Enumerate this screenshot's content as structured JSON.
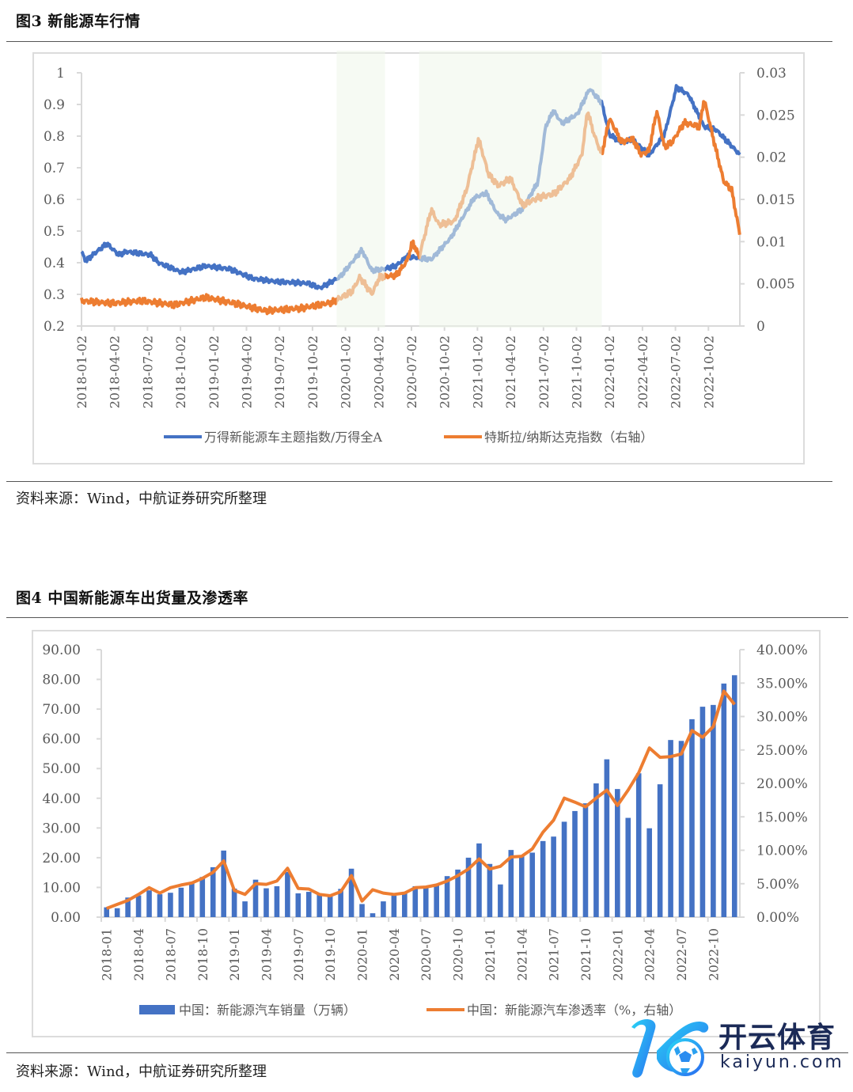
{
  "figure3": {
    "title": "图3   新能源车行情",
    "source": "资料来源：Wind，中航证券研究所整理"
  },
  "figure4": {
    "title": "图4   中国新能源车出货量及渗透率",
    "source": "资料来源：Wind，中航证券研究所整理"
  },
  "watermark": {
    "name_cn": "开云体育",
    "domain": "kaiyun.com"
  },
  "colors": {
    "blue": "#4472C4",
    "orange": "#ED7D31",
    "shade": "#EEF6EA",
    "grid": "#D9D9D9"
  },
  "chart_data": [
    {
      "type": "line",
      "title": "新能源车行情",
      "x_unit": "months since 2018-01-02",
      "x_tick_labels": [
        "2018-01-02",
        "2018-04-02",
        "2018-07-02",
        "2018-10-02",
        "2019-01-02",
        "2019-04-02",
        "2019-07-02",
        "2019-10-02",
        "2020-01-02",
        "2020-04-02",
        "2020-07-02",
        "2020-10-02",
        "2021-01-02",
        "2021-04-02",
        "2021-07-02",
        "2021-10-02",
        "2022-01-02",
        "2022-04-02",
        "2022-07-02",
        "2022-10-02"
      ],
      "y_left": {
        "ticks": [
          "0.2",
          "0.3",
          "0.4",
          "0.5",
          "0.6",
          "0.7",
          "0.8",
          "0.9",
          "1"
        ],
        "ylim": [
          0.2,
          1.0
        ]
      },
      "y_right": {
        "ticks": [
          "0",
          "0.005",
          "0.01",
          "0.015",
          "0.02",
          "0.025",
          "0.03"
        ],
        "ylim": [
          0,
          0.03
        ]
      },
      "shaded_periods": [
        [
          23.2,
          27.6
        ],
        [
          30.7,
          47.3
        ]
      ],
      "legend_position": "bottom",
      "series": [
        {
          "name": "万得新能源车主题指数/万得全A",
          "axis": "left",
          "color": "#4472C4",
          "points": [
            [
              0,
              0.435
            ],
            [
              0.4,
              0.405
            ],
            [
              1.2,
              0.43
            ],
            [
              2.3,
              0.46
            ],
            [
              3.4,
              0.425
            ],
            [
              4.1,
              0.435
            ],
            [
              6.3,
              0.425
            ],
            [
              7.0,
              0.4
            ],
            [
              9.1,
              0.37
            ],
            [
              11.3,
              0.39
            ],
            [
              13.5,
              0.38
            ],
            [
              15.6,
              0.35
            ],
            [
              17.8,
              0.34
            ],
            [
              20.6,
              0.335
            ],
            [
              21.7,
              0.32
            ],
            [
              23.5,
              0.355
            ],
            [
              25.5,
              0.44
            ],
            [
              26.4,
              0.375
            ],
            [
              27.5,
              0.38
            ],
            [
              28.6,
              0.39
            ],
            [
              29.6,
              0.42
            ],
            [
              31.8,
              0.41
            ],
            [
              33.6,
              0.48
            ],
            [
              35.7,
              0.605
            ],
            [
              36.8,
              0.62
            ],
            [
              37.8,
              0.555
            ],
            [
              38.6,
              0.535
            ],
            [
              40.1,
              0.57
            ],
            [
              41.5,
              0.655
            ],
            [
              42.2,
              0.83
            ],
            [
              42.9,
              0.88
            ],
            [
              43.7,
              0.84
            ],
            [
              45.1,
              0.87
            ],
            [
              46.2,
              0.95
            ],
            [
              47.3,
              0.905
            ],
            [
              48.0,
              0.805
            ],
            [
              49.1,
              0.78
            ],
            [
              50.1,
              0.79
            ],
            [
              51.6,
              0.74
            ],
            [
              53.0,
              0.805
            ],
            [
              54.1,
              0.955
            ],
            [
              55.2,
              0.93
            ],
            [
              55.9,
              0.88
            ],
            [
              56.6,
              0.83
            ],
            [
              57.7,
              0.82
            ],
            [
              58.8,
              0.78
            ],
            [
              59.9,
              0.74
            ]
          ]
        },
        {
          "name": "特斯拉/纳斯达克指数（右轴）",
          "axis": "right",
          "color": "#ED7D31",
          "points": [
            [
              0,
              0.003
            ],
            [
              2.7,
              0.0027
            ],
            [
              5.5,
              0.003
            ],
            [
              8.4,
              0.0025
            ],
            [
              11.3,
              0.0034
            ],
            [
              14.2,
              0.0026
            ],
            [
              16.7,
              0.0018
            ],
            [
              20.0,
              0.0021
            ],
            [
              22.8,
              0.0028
            ],
            [
              24.6,
              0.0041
            ],
            [
              25.3,
              0.0058
            ],
            [
              26.4,
              0.0038
            ],
            [
              27.1,
              0.0058
            ],
            [
              28.6,
              0.006
            ],
            [
              29.6,
              0.0077
            ],
            [
              30.1,
              0.01
            ],
            [
              30.7,
              0.0082
            ],
            [
              31.8,
              0.0138
            ],
            [
              32.5,
              0.012
            ],
            [
              33.9,
              0.0124
            ],
            [
              35.0,
              0.0161
            ],
            [
              36.1,
              0.0222
            ],
            [
              37.0,
              0.018
            ],
            [
              37.9,
              0.0166
            ],
            [
              39.0,
              0.0175
            ],
            [
              40.1,
              0.0143
            ],
            [
              41.5,
              0.0152
            ],
            [
              43.0,
              0.0157
            ],
            [
              44.4,
              0.0175
            ],
            [
              45.5,
              0.0203
            ],
            [
              46.0,
              0.0255
            ],
            [
              46.6,
              0.0227
            ],
            [
              47.3,
              0.0203
            ],
            [
              48.0,
              0.0246
            ],
            [
              49.1,
              0.0218
            ],
            [
              50.1,
              0.0222
            ],
            [
              50.9,
              0.0203
            ],
            [
              51.6,
              0.0208
            ],
            [
              52.3,
              0.0255
            ],
            [
              53.0,
              0.0212
            ],
            [
              53.7,
              0.0218
            ],
            [
              54.8,
              0.0241
            ],
            [
              56.2,
              0.0236
            ],
            [
              56.6,
              0.0269
            ],
            [
              57.7,
              0.0208
            ],
            [
              58.4,
              0.0171
            ],
            [
              59.1,
              0.0162
            ],
            [
              59.9,
              0.0105
            ]
          ]
        }
      ]
    },
    {
      "type": "bar",
      "title": "中国新能源车出货量及渗透率",
      "categories_start": "2018-01",
      "x_tick_labels": [
        "2018-01",
        "2018-04",
        "2018-07",
        "2018-10",
        "2019-01",
        "2019-04",
        "2019-07",
        "2019-10",
        "2020-01",
        "2020-04",
        "2020-07",
        "2020-10",
        "2021-01",
        "2021-04",
        "2021-07",
        "2021-10",
        "2022-01",
        "2022-04",
        "2022-07",
        "2022-10"
      ],
      "y_left": {
        "ticks": [
          "0.00",
          "10.00",
          "20.00",
          "30.00",
          "40.00",
          "50.00",
          "60.00",
          "70.00",
          "80.00",
          "90.00"
        ],
        "ylim": [
          0,
          90
        ]
      },
      "y_right": {
        "ticks": [
          "0.00%",
          "5.00%",
          "10.00%",
          "15.00%",
          "20.00%",
          "25.00%",
          "30.00%",
          "35.00%",
          "40.00%"
        ],
        "ylim": [
          0,
          40
        ]
      },
      "legend_position": "bottom",
      "series": [
        {
          "name": "中国：新能源汽车销量（万辆）",
          "type": "bar",
          "axis": "left",
          "color": "#4472C4",
          "values": [
            3.3,
            3.0,
            6.6,
            7.3,
            9.0,
            7.7,
            8.2,
            9.9,
            11.7,
            13.5,
            16.8,
            22.4,
            9.6,
            5.3,
            12.6,
            9.7,
            10.4,
            15.2,
            8.0,
            8.5,
            8.0,
            7.5,
            9.5,
            16.3,
            4.4,
            1.3,
            5.3,
            7.2,
            8.2,
            10.4,
            9.8,
            10.9,
            13.8,
            16.0,
            20.0,
            24.8,
            17.9,
            11.0,
            22.6,
            20.6,
            21.7,
            25.6,
            27.1,
            32.1,
            35.7,
            38.3,
            45.0,
            53.1,
            43.1,
            33.4,
            48.4,
            29.9,
            44.7,
            59.6,
            59.3,
            66.6,
            70.8,
            71.4,
            78.6,
            81.4
          ]
        },
        {
          "name": "中国：新能源汽车渗透率（%，右轴）",
          "type": "line",
          "axis": "right",
          "color": "#ED7D31",
          "values": [
            1.3,
            1.9,
            2.5,
            3.4,
            4.4,
            3.6,
            4.4,
            4.8,
            5.1,
            5.8,
            6.7,
            8.4,
            4.0,
            3.4,
            5.0,
            4.9,
            5.4,
            7.3,
            4.3,
            4.2,
            3.4,
            3.2,
            3.8,
            6.2,
            2.4,
            4.1,
            3.6,
            3.4,
            3.6,
            4.4,
            4.5,
            4.8,
            5.4,
            6.2,
            7.2,
            8.7,
            7.2,
            7.6,
            9.0,
            9.1,
            10.2,
            12.7,
            14.5,
            17.8,
            17.2,
            16.5,
            17.8,
            19.0,
            16.7,
            19.0,
            21.6,
            25.3,
            23.9,
            24.0,
            24.4,
            27.9,
            26.9,
            28.5,
            33.8,
            31.8
          ]
        }
      ]
    }
  ]
}
